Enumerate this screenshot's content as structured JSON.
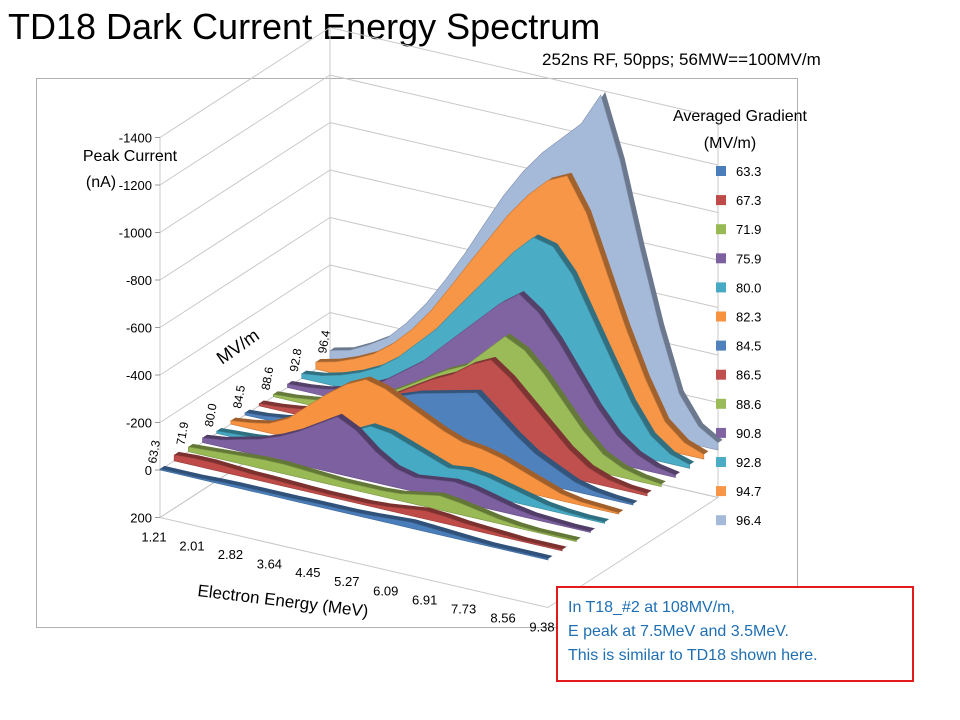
{
  "title": "TD18 Dark Current Energy Spectrum",
  "subtitle": "252ns RF, 50pps; 56MW==100MV/m",
  "note": {
    "lines": [
      "In T18_#2 at 108MV/m,",
      "E peak at 7.5MeV and 3.5MeV.",
      "This is similar to TD18 shown here."
    ]
  },
  "chart_data": {
    "type": "area",
    "title": "",
    "ylabel": [
      "Peak Current",
      "(nA)"
    ],
    "xlabel": "Electron Energy (MeV)",
    "zlabel": "MV/m",
    "legend_title": [
      "Averaged Gradient",
      "(MV/m)"
    ],
    "legend_placement": "right",
    "y_ticks": [
      "-1400",
      "-1200",
      "-1000",
      "-800",
      "-600",
      "-400",
      "-200",
      "0",
      "200"
    ],
    "ylim": [
      200,
      -1400
    ],
    "x_ticks": [
      "1.21",
      "2.01",
      "2.82",
      "3.64",
      "4.45",
      "5.27",
      "6.09",
      "6.91",
      "7.73",
      "8.56",
      "9.38"
    ],
    "x": [
      1.21,
      1.62,
      2.01,
      2.42,
      2.82,
      3.23,
      3.64,
      4.05,
      4.45,
      4.86,
      5.27,
      5.68,
      6.09,
      6.5,
      6.91,
      7.32,
      7.73,
      8.15,
      8.56,
      8.97,
      9.38
    ],
    "z_ticks": [
      "63.3",
      "71.9",
      "80.0",
      "84.5",
      "88.6",
      "92.8",
      "96.4"
    ],
    "series": [
      {
        "name": "63.3",
        "color": "#4a7ebb",
        "values": [
          -5,
          -5,
          -5,
          -8,
          -10,
          -10,
          -10,
          -10,
          -12,
          -12,
          -12,
          -15,
          -20,
          -25,
          -20,
          -15,
          -10,
          -5,
          -5,
          -5,
          -5
        ]
      },
      {
        "name": "67.3",
        "color": "#be4b48",
        "values": [
          -25,
          -30,
          -30,
          -25,
          -20,
          -18,
          -15,
          -12,
          -10,
          -10,
          -10,
          -15,
          -25,
          -35,
          -30,
          -20,
          -15,
          -10,
          -5,
          -5,
          -5
        ]
      },
      {
        "name": "71.9",
        "color": "#98b954",
        "values": [
          -20,
          -25,
          -30,
          -35,
          -40,
          -40,
          -35,
          -30,
          -25,
          -25,
          -25,
          -30,
          -45,
          -60,
          -50,
          -35,
          -20,
          -10,
          -5,
          -5,
          -5
        ]
      },
      {
        "name": "75.9",
        "color": "#7d60a0",
        "values": [
          -20,
          -30,
          -50,
          -70,
          -100,
          -140,
          -190,
          -240,
          -200,
          -130,
          -80,
          -60,
          -70,
          -80,
          -70,
          -50,
          -30,
          -15,
          -10,
          -5,
          -5
        ]
      },
      {
        "name": "80.0",
        "color": "#46aac5",
        "values": [
          -10,
          -15,
          -20,
          -30,
          -40,
          -60,
          -100,
          -140,
          -180,
          -170,
          -140,
          -110,
          -80,
          -90,
          -80,
          -60,
          -40,
          -20,
          -10,
          -5,
          -5
        ]
      },
      {
        "name": "82.3",
        "color": "#f69240",
        "values": [
          -15,
          -25,
          -40,
          -80,
          -150,
          -220,
          -280,
          -320,
          -300,
          -260,
          -220,
          -180,
          -150,
          -140,
          -120,
          -90,
          -60,
          -30,
          -15,
          -10,
          -5
        ]
      },
      {
        "name": "84.5",
        "color": "#4f81bd",
        "values": [
          -10,
          -15,
          -25,
          -40,
          -60,
          -100,
          -150,
          -200,
          -230,
          -260,
          -280,
          -300,
          -320,
          -250,
          -180,
          -120,
          -80,
          -40,
          -20,
          -10,
          -5
        ]
      },
      {
        "name": "86.5",
        "color": "#c0504d",
        "values": [
          -10,
          -15,
          -25,
          -40,
          -60,
          -90,
          -130,
          -180,
          -230,
          -280,
          -320,
          -380,
          -420,
          -360,
          -280,
          -200,
          -120,
          -60,
          -30,
          -15,
          -10
        ]
      },
      {
        "name": "88.6",
        "color": "#9bbb59",
        "values": [
          -10,
          -15,
          -25,
          -40,
          -60,
          -90,
          -130,
          -180,
          -230,
          -280,
          -320,
          -400,
          -480,
          -440,
          -360,
          -260,
          -160,
          -80,
          -40,
          -20,
          -10
        ]
      },
      {
        "name": "90.8",
        "color": "#8064a2",
        "values": [
          -15,
          -20,
          -30,
          -50,
          -80,
          -120,
          -180,
          -240,
          -320,
          -400,
          -480,
          -560,
          -620,
          -560,
          -460,
          -340,
          -220,
          -120,
          -60,
          -25,
          -10
        ]
      },
      {
        "name": "92.8",
        "color": "#4bacc6",
        "values": [
          -20,
          -30,
          -50,
          -80,
          -120,
          -180,
          -260,
          -340,
          -440,
          -540,
          -640,
          -740,
          -820,
          -800,
          -700,
          -540,
          -380,
          -220,
          -100,
          -40,
          -15
        ]
      },
      {
        "name": "94.7",
        "color": "#f79646",
        "values": [
          -30,
          -50,
          -80,
          -120,
          -180,
          -260,
          -360,
          -480,
          -600,
          -720,
          -840,
          -940,
          -1020,
          -1060,
          -920,
          -700,
          -480,
          -280,
          -120,
          -50,
          -20
        ]
      },
      {
        "name": "96.4",
        "color": "#a5b9d9",
        "values": [
          -40,
          -60,
          -100,
          -150,
          -230,
          -330,
          -450,
          -580,
          -720,
          -860,
          -980,
          -1080,
          -1160,
          -1240,
          -1380,
          -1120,
          -780,
          -460,
          -200,
          -80,
          -30
        ]
      }
    ]
  }
}
